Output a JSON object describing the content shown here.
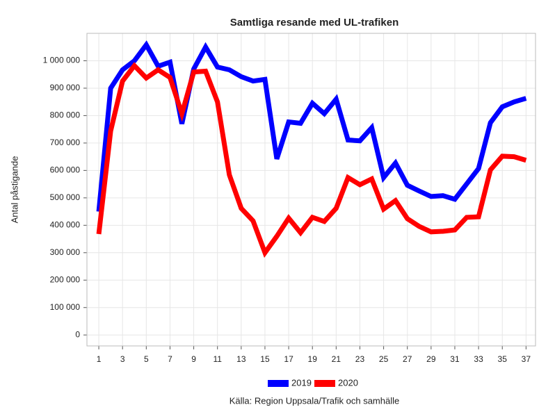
{
  "chart_data": {
    "type": "line",
    "title": "Samtliga resande med UL-trafiken",
    "y_label": "Antal påstigande",
    "annotations": [
      "Källa: Region Uppsala/Trafik och samhälle"
    ],
    "x": [
      1,
      2,
      3,
      4,
      5,
      6,
      7,
      8,
      9,
      10,
      11,
      12,
      13,
      14,
      15,
      16,
      17,
      18,
      19,
      20,
      21,
      22,
      23,
      24,
      25,
      26,
      27,
      28,
      29,
      30,
      31,
      32,
      33,
      34,
      35,
      36,
      37
    ],
    "series": [
      {
        "name": "2019",
        "color": "#0000ff",
        "values": [
          450000,
          900000,
          967000,
          1000000,
          1058000,
          980000,
          995000,
          770000,
          970000,
          1050000,
          977000,
          967000,
          942000,
          926000,
          932000,
          642000,
          777000,
          772000,
          845000,
          807000,
          860000,
          711000,
          708000,
          756000,
          574000,
          627000,
          546000,
          525000,
          505000,
          508000,
          495000,
          551000,
          607000,
          774000,
          832000,
          850000,
          863000
        ]
      },
      {
        "name": "2020",
        "color": "#ff0000",
        "values": [
          368000,
          744000,
          926000,
          982000,
          937000,
          967000,
          939000,
          807000,
          959000,
          962000,
          850000,
          584000,
          462000,
          416000,
          300000,
          360000,
          426000,
          373000,
          429000,
          414000,
          462000,
          574000,
          548000,
          569000,
          459000,
          490000,
          424000,
          396000,
          376000,
          378000,
          383000,
          429000,
          431000,
          602000,
          652000,
          650000,
          637000
        ]
      }
    ],
    "xlim": [
      0,
      37.8
    ],
    "xticks": [
      1,
      3,
      5,
      7,
      9,
      11,
      13,
      15,
      17,
      19,
      21,
      23,
      25,
      27,
      29,
      31,
      33,
      35,
      37
    ],
    "ylim": [
      -40000,
      1100000
    ],
    "yticks": [
      0,
      {
        "value": 100000,
        "label": "100 000"
      },
      {
        "value": 200000,
        "label": "200 000"
      },
      {
        "value": 300000,
        "label": "300 000"
      },
      {
        "value": 400000,
        "label": "400 000"
      },
      {
        "value": 500000,
        "label": "500 000"
      },
      {
        "value": 600000,
        "label": "600 000"
      },
      {
        "value": 700000,
        "label": "700 000"
      },
      {
        "value": 800000,
        "label": "800 000"
      },
      {
        "value": 900000,
        "label": "900 000"
      },
      {
        "value": 1000000,
        "label": "1 000 000"
      }
    ],
    "grid": true,
    "legend": "bottom"
  }
}
